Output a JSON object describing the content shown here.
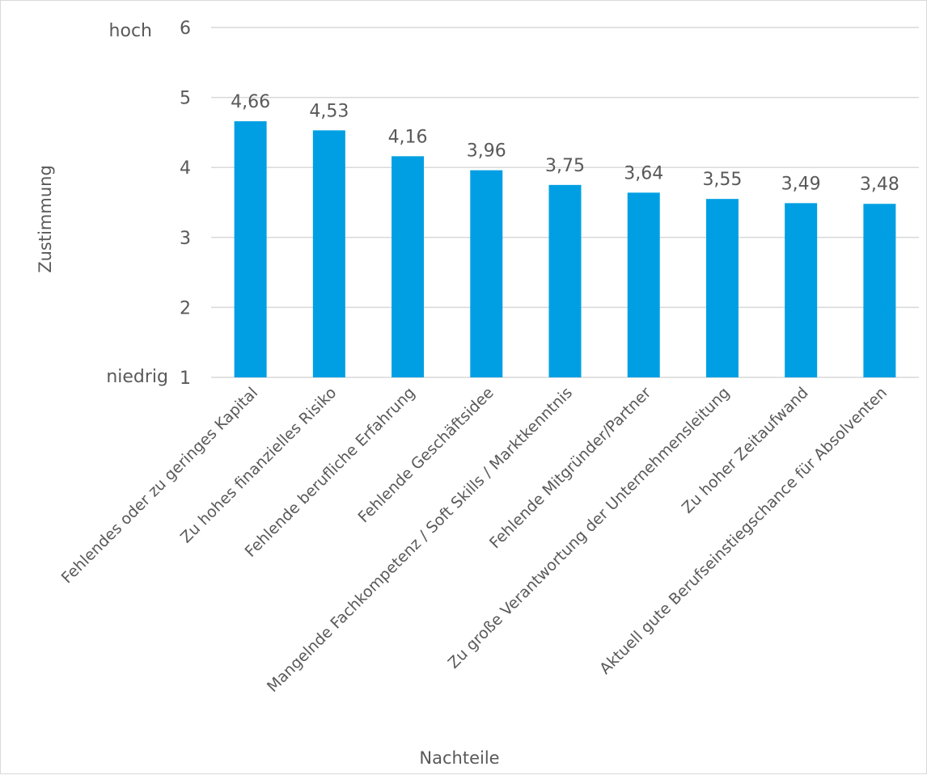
{
  "chart_data": {
    "type": "bar",
    "xlabel": "Nachteile",
    "ylabel": "Zustimmung",
    "ylim": [
      1,
      6
    ],
    "yticks": [
      "1",
      "2",
      "3",
      "4",
      "5",
      "6"
    ],
    "y_extreme_labels": {
      "low": "niedrig",
      "high": "hoch"
    },
    "grid": true,
    "bar_color": "#009fe3",
    "categories": [
      "Fehlendes oder zu geringes Kapital",
      "Zu hohes finanzielles Risiko",
      "Fehlende berufliche Erfahrung",
      "Fehlende Geschäftsidee",
      "Mangelnde Fachkompetenz / Soft Skills / Marktkenntnis",
      "Fehlende Mitgründer/Partner",
      "Zu große Verantwortung der Unternehmensleitung",
      "Zu hoher Zeitaufwand",
      "Aktuell gute Berufseinstiegschance für Absolventen"
    ],
    "values": [
      4.66,
      4.53,
      4.16,
      3.96,
      3.75,
      3.64,
      3.55,
      3.49,
      3.48
    ],
    "value_labels": [
      "4,66",
      "4,53",
      "4,16",
      "3,96",
      "3,75",
      "3,64",
      "3,55",
      "3,49",
      "3,48"
    ]
  }
}
